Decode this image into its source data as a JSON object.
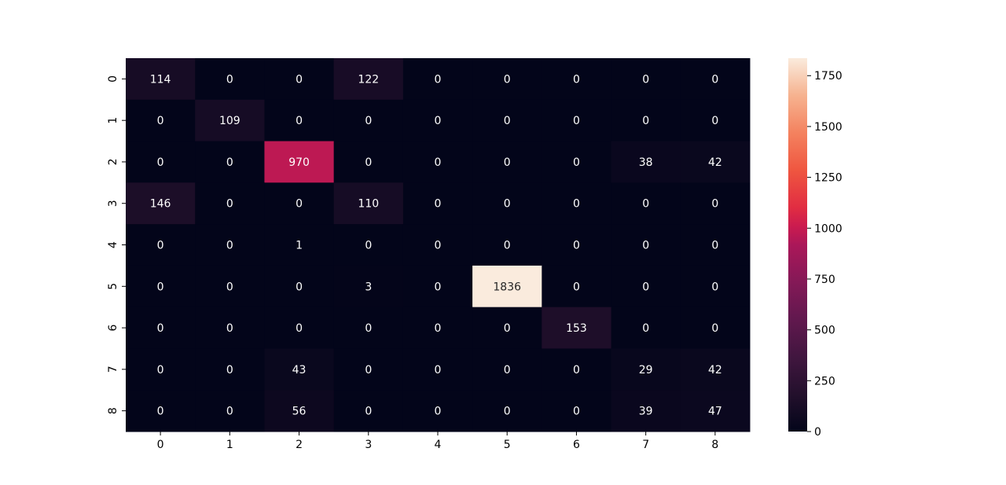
{
  "chart_data": {
    "type": "heatmap",
    "title": "",
    "xlabel": "",
    "ylabel": "",
    "x_tick_labels": [
      "0",
      "1",
      "2",
      "3",
      "4",
      "5",
      "6",
      "7",
      "8"
    ],
    "y_tick_labels": [
      "0",
      "1",
      "2",
      "3",
      "4",
      "5",
      "6",
      "7",
      "8"
    ],
    "values": [
      [
        114,
        0,
        0,
        122,
        0,
        0,
        0,
        0,
        0
      ],
      [
        0,
        109,
        0,
        0,
        0,
        0,
        0,
        0,
        0
      ],
      [
        0,
        0,
        970,
        0,
        0,
        0,
        0,
        38,
        42
      ],
      [
        146,
        0,
        0,
        110,
        0,
        0,
        0,
        0,
        0
      ],
      [
        0,
        0,
        1,
        0,
        0,
        0,
        0,
        0,
        0
      ],
      [
        0,
        0,
        0,
        3,
        0,
        1836,
        0,
        0,
        0
      ],
      [
        0,
        0,
        0,
        0,
        0,
        0,
        153,
        0,
        0
      ],
      [
        0,
        0,
        43,
        0,
        0,
        0,
        0,
        29,
        42
      ],
      [
        0,
        0,
        56,
        0,
        0,
        0,
        0,
        39,
        47
      ]
    ],
    "colorbar": {
      "min": 0,
      "max": 1836,
      "ticks": [
        0,
        250,
        500,
        750,
        1000,
        1250,
        1500,
        1750
      ]
    },
    "colormap": "rocket",
    "grid": false
  }
}
